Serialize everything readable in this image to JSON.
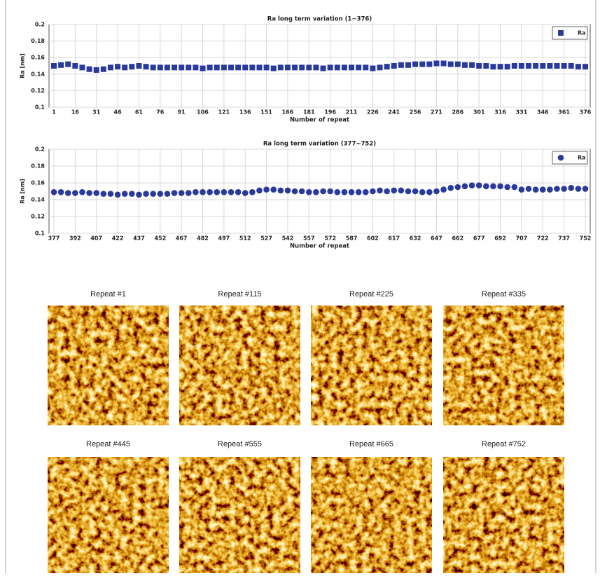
{
  "chart_data": [
    {
      "type": "scatter",
      "title": "Ra long term variation (1~376)",
      "y_label": "Ra [nm]",
      "x_label": "Number of repeat",
      "marker": "square",
      "grid": true,
      "legend": "upper right",
      "xlim": [
        1,
        376
      ],
      "ylim": [
        0.1,
        0.2
      ],
      "xticks": [
        1,
        16,
        31,
        46,
        61,
        76,
        91,
        106,
        121,
        136,
        151,
        166,
        181,
        196,
        211,
        226,
        241,
        256,
        271,
        286,
        301,
        316,
        331,
        346,
        361,
        376
      ],
      "yticks": [
        0.1,
        0.12,
        0.14,
        0.16,
        0.18,
        0.2
      ],
      "x": [
        1,
        6,
        11,
        16,
        21,
        26,
        31,
        36,
        41,
        46,
        51,
        56,
        61,
        66,
        71,
        76,
        81,
        86,
        91,
        96,
        101,
        106,
        111,
        116,
        121,
        126,
        131,
        136,
        141,
        146,
        151,
        156,
        161,
        166,
        171,
        176,
        181,
        186,
        191,
        196,
        201,
        206,
        211,
        216,
        221,
        226,
        231,
        236,
        241,
        246,
        251,
        256,
        261,
        266,
        271,
        276,
        281,
        286,
        291,
        296,
        301,
        306,
        311,
        316,
        321,
        326,
        331,
        336,
        341,
        346,
        351,
        356,
        361,
        366,
        371,
        376
      ],
      "series": [
        {
          "name": "Ra",
          "color": "#2a3a9c",
          "values": [
            0.15,
            0.151,
            0.152,
            0.15,
            0.148,
            0.146,
            0.145,
            0.146,
            0.148,
            0.149,
            0.148,
            0.149,
            0.15,
            0.149,
            0.148,
            0.148,
            0.148,
            0.148,
            0.148,
            0.148,
            0.148,
            0.147,
            0.148,
            0.148,
            0.148,
            0.148,
            0.148,
            0.148,
            0.148,
            0.148,
            0.148,
            0.147,
            0.148,
            0.148,
            0.148,
            0.148,
            0.148,
            0.148,
            0.147,
            0.148,
            0.148,
            0.148,
            0.148,
            0.148,
            0.148,
            0.147,
            0.148,
            0.149,
            0.15,
            0.151,
            0.151,
            0.152,
            0.152,
            0.152,
            0.153,
            0.153,
            0.152,
            0.152,
            0.151,
            0.151,
            0.15,
            0.15,
            0.149,
            0.149,
            0.149,
            0.15,
            0.15,
            0.15,
            0.15,
            0.15,
            0.15,
            0.15,
            0.15,
            0.15,
            0.149,
            0.149
          ]
        }
      ]
    },
    {
      "type": "scatter",
      "title": "Ra long term variation (377~752)",
      "y_label": "Ra [nm]",
      "x_label": "Number of repeat",
      "marker": "circle",
      "grid": true,
      "legend": "upper right",
      "xlim": [
        377,
        752
      ],
      "ylim": [
        0.1,
        0.2
      ],
      "xticks": [
        377,
        392,
        407,
        422,
        437,
        452,
        467,
        482,
        497,
        512,
        527,
        542,
        557,
        572,
        587,
        602,
        617,
        632,
        647,
        662,
        677,
        692,
        707,
        722,
        737,
        752
      ],
      "yticks": [
        0.1,
        0.12,
        0.14,
        0.16,
        0.18,
        0.2
      ],
      "x": [
        377,
        382,
        387,
        392,
        397,
        402,
        407,
        412,
        417,
        422,
        427,
        432,
        437,
        442,
        447,
        452,
        457,
        462,
        467,
        472,
        477,
        482,
        487,
        492,
        497,
        502,
        507,
        512,
        517,
        522,
        527,
        532,
        537,
        542,
        547,
        552,
        557,
        562,
        567,
        572,
        577,
        582,
        587,
        592,
        597,
        602,
        607,
        612,
        617,
        622,
        627,
        632,
        637,
        642,
        647,
        652,
        657,
        662,
        667,
        672,
        677,
        682,
        687,
        692,
        697,
        702,
        707,
        712,
        717,
        722,
        727,
        732,
        737,
        742,
        747,
        752
      ],
      "series": [
        {
          "name": "Ra",
          "color": "#2a3a9c",
          "values": [
            0.149,
            0.149,
            0.148,
            0.148,
            0.149,
            0.148,
            0.148,
            0.147,
            0.147,
            0.146,
            0.147,
            0.147,
            0.146,
            0.147,
            0.147,
            0.147,
            0.147,
            0.148,
            0.148,
            0.148,
            0.149,
            0.149,
            0.149,
            0.149,
            0.149,
            0.149,
            0.149,
            0.148,
            0.149,
            0.151,
            0.152,
            0.152,
            0.151,
            0.151,
            0.15,
            0.15,
            0.149,
            0.149,
            0.15,
            0.15,
            0.149,
            0.149,
            0.149,
            0.149,
            0.149,
            0.15,
            0.151,
            0.15,
            0.151,
            0.151,
            0.15,
            0.15,
            0.149,
            0.149,
            0.15,
            0.152,
            0.154,
            0.155,
            0.156,
            0.157,
            0.157,
            0.156,
            0.156,
            0.156,
            0.155,
            0.155,
            0.152,
            0.153,
            0.152,
            0.152,
            0.152,
            0.153,
            0.153,
            0.154,
            0.153,
            0.153
          ]
        }
      ]
    }
  ],
  "panels": [
    {
      "title": "Repeat #1"
    },
    {
      "title": "Repeat #115"
    },
    {
      "title": "Repeat #225"
    },
    {
      "title": "Repeat #335"
    },
    {
      "title": "Repeat #445"
    },
    {
      "title": "Repeat #555"
    },
    {
      "title": "Repeat #665"
    },
    {
      "title": "Repeat #752"
    }
  ]
}
